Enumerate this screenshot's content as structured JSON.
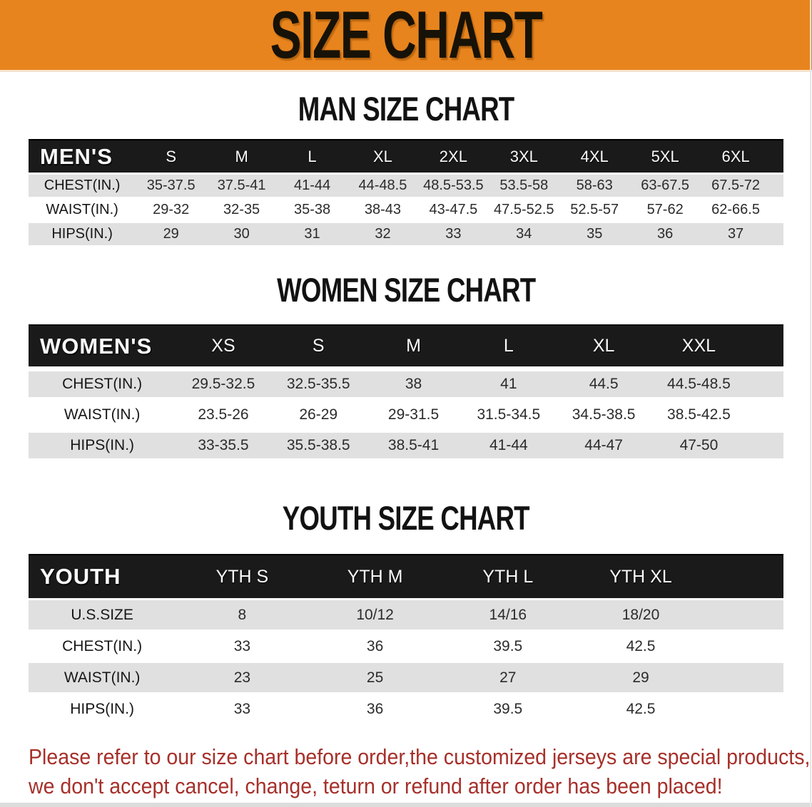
{
  "banner": {
    "title": "SIZE CHART"
  },
  "men_chart": {
    "heading": "MAN SIZE CHART",
    "header_label": "MEN'S",
    "columns": [
      "S",
      "M",
      "L",
      "XL",
      "2XL",
      "3XL",
      "4XL",
      "5XL",
      "6XL"
    ],
    "rows": [
      {
        "label": "CHEST(IN.)",
        "values": [
          "35-37.5",
          "37.5-41",
          "41-44",
          "44-48.5",
          "48.5-53.5",
          "53.5-58",
          "58-63",
          "63-67.5",
          "67.5-72"
        ]
      },
      {
        "label": "WAIST(IN.)",
        "values": [
          "29-32",
          "32-35",
          "35-38",
          "38-43",
          "43-47.5",
          "47.5-52.5",
          "52.5-57",
          "57-62",
          "62-66.5"
        ]
      },
      {
        "label": "HIPS(IN.)",
        "values": [
          "29",
          "30",
          "31",
          "32",
          "33",
          "34",
          "35",
          "36",
          "37"
        ]
      }
    ]
  },
  "women_chart": {
    "heading": "WOMEN SIZE CHART",
    "header_label": "WOMEN'S",
    "columns": [
      "XS",
      "S",
      "M",
      "L",
      "XL",
      "XXL"
    ],
    "rows": [
      {
        "label": "CHEST(IN.)",
        "values": [
          "29.5-32.5",
          "32.5-35.5",
          "38",
          "41",
          "44.5",
          "44.5-48.5"
        ]
      },
      {
        "label": "WAIST(IN.)",
        "values": [
          "23.5-26",
          "26-29",
          "29-31.5",
          "31.5-34.5",
          "34.5-38.5",
          "38.5-42.5"
        ]
      },
      {
        "label": "HIPS(IN.)",
        "values": [
          "33-35.5",
          "35.5-38.5",
          "38.5-41",
          "41-44",
          "44-47",
          "47-50"
        ]
      }
    ]
  },
  "youth_chart": {
    "heading": "YOUTH SIZE CHART",
    "header_label": "YOUTH",
    "columns": [
      "YTH S",
      "YTH M",
      "YTH L",
      "YTH XL"
    ],
    "rows": [
      {
        "label": "U.S.SIZE",
        "values": [
          "8",
          "10/12",
          "14/16",
          "18/20"
        ]
      },
      {
        "label": "CHEST(IN.)",
        "values": [
          "33",
          "36",
          "39.5",
          "42.5"
        ]
      },
      {
        "label": "WAIST(IN.)",
        "values": [
          "23",
          "25",
          "27",
          "29"
        ]
      },
      {
        "label": "HIPS(IN.)",
        "values": [
          "33",
          "36",
          "39.5",
          "42.5"
        ]
      }
    ]
  },
  "disclaimer": {
    "line1": "Please refer to our size chart before order,the customized jerseys are special products,",
    "line2": "we don't accept cancel, change, teturn or refund after order has been placed!"
  },
  "colors": {
    "banner-bg": "#E8841D",
    "header-band": "#1A1A1A",
    "row-shade": "#E0E0E0",
    "row-plain": "#FFFFFF",
    "heading-text": "#121212",
    "disclaimer-red": "#A6302A"
  }
}
